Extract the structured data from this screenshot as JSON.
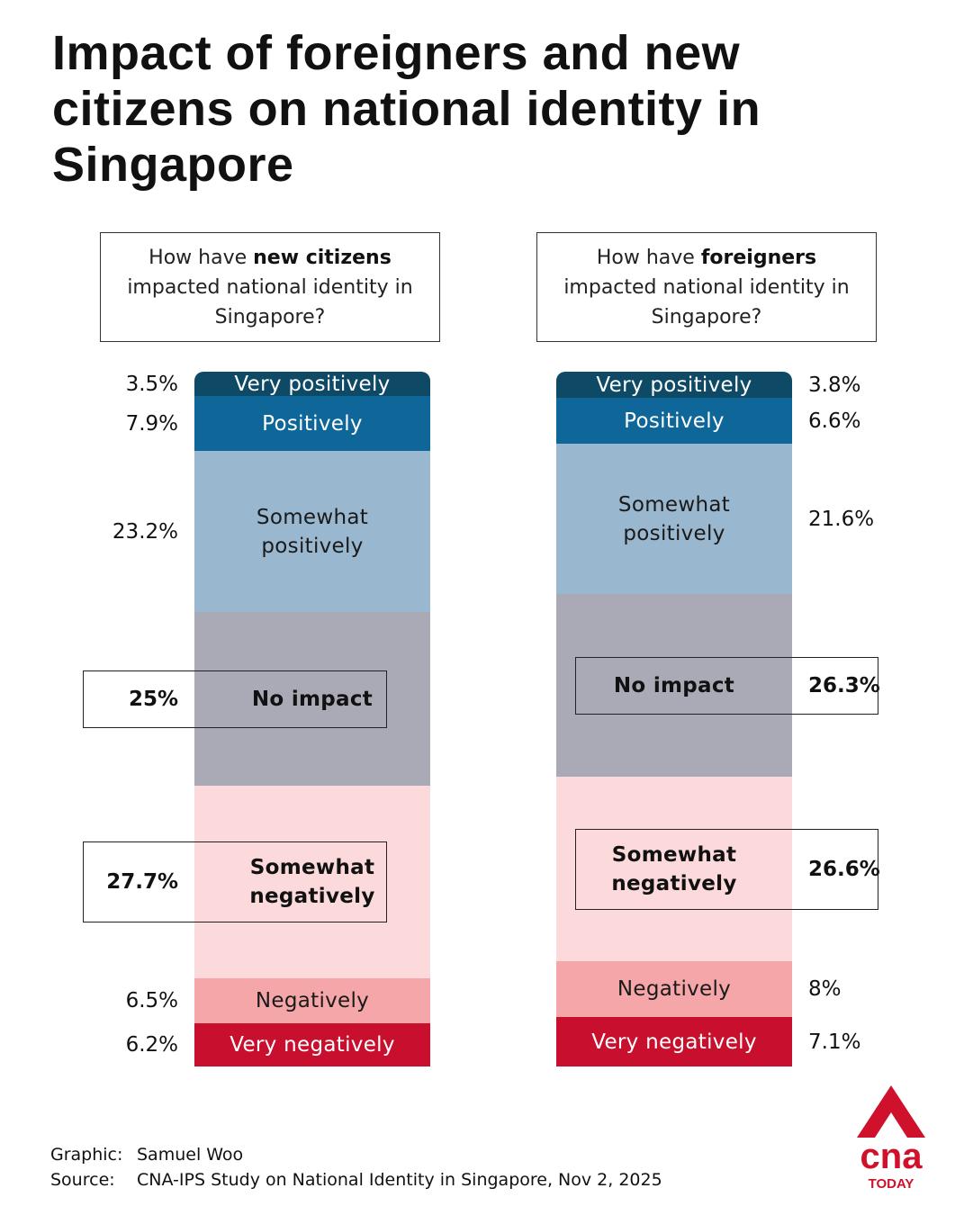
{
  "title": "Impact of foreigners and new citizens on national identity in Singapore",
  "chart_data": [
    {
      "type": "bar",
      "stacked": true,
      "question": {
        "pre": "How have ",
        "bold": "new citizens",
        "post": " impacted national identity in Singapore?"
      },
      "categories": [
        "Very positively",
        "Positively",
        "Somewhat positively",
        "No impact",
        "Somewhat negatively",
        "Negatively",
        "Very negatively"
      ],
      "values": [
        3.5,
        7.9,
        23.2,
        25,
        27.7,
        6.5,
        6.2
      ],
      "labels": [
        "3.5%",
        "7.9%",
        "23.2%",
        "25%",
        "27.7%",
        "6.5%",
        "6.2%"
      ],
      "highlighted": [
        "No impact",
        "Somewhat negatively"
      ],
      "value_position": "left"
    },
    {
      "type": "bar",
      "stacked": true,
      "question": {
        "pre": "How have ",
        "bold": "foreigners",
        "post": " impacted national identity in Singapore?"
      },
      "categories": [
        "Very positively",
        "Positively",
        "Somewhat positively",
        "No impact",
        "Somewhat negatively",
        "Negatively",
        "Very negatively"
      ],
      "values": [
        3.8,
        6.6,
        21.6,
        26.3,
        26.6,
        8,
        7.1
      ],
      "labels": [
        "3.8%",
        "6.6%",
        "21.6%",
        "26.3%",
        "26.6%",
        "8%",
        "7.1%"
      ],
      "highlighted": [
        "No impact",
        "Somewhat negatively"
      ],
      "value_position": "right"
    }
  ],
  "colors": {
    "Very positively": "#0e4a66",
    "Positively": "#0e6699",
    "Somewhat positively": "#99b8d0",
    "No impact": "#a9aab5",
    "Somewhat negatively": "#fcdadc",
    "Negatively": "#f5a6a8",
    "Very negatively": "#c8102e"
  },
  "text_colors": {
    "Very positively": "#ffffff",
    "Positively": "#ffffff",
    "Somewhat positively": "#1a1a1a",
    "No impact": "#1a1a1a",
    "Somewhat negatively": "#1a1a1a",
    "Negatively": "#1a1a1a",
    "Very negatively": "#ffffff"
  },
  "footer": {
    "graphic_label": "Graphic:",
    "graphic_value": "Samuel Woo",
    "source_label": "Source:",
    "source_value": "CNA-IPS Study on National Identity in Singapore, Nov 2, 2025"
  },
  "logo": {
    "brand": "cna",
    "sub": "TODAY",
    "color": "#d0112b"
  }
}
